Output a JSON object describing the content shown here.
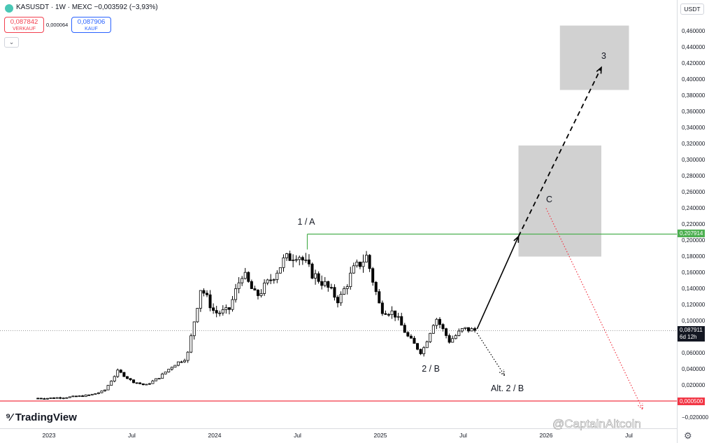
{
  "header": {
    "symbol_line": "KASUSDT · 1W · MEXC",
    "change": "−0,003592 (−3,93%)",
    "sell_price": "0,087842",
    "sell_label": "VERKAUF",
    "spread": "0,000064",
    "buy_price": "0,087906",
    "buy_label": "KAUF",
    "collapse_icon": "chevron-down-icon"
  },
  "axis": {
    "currency": "USDT",
    "settings_icon": "gear-icon"
  },
  "branding": {
    "logo_text": "TradingView",
    "watermark": "@CaptainAltcoin"
  },
  "colors": {
    "up": "#000000",
    "down": "#000000",
    "resistance": "#4caf50",
    "support": "#f23645",
    "box": "#c9c9c9"
  },
  "chart_data": {
    "type": "candlestick",
    "symbol": "KASUSDT",
    "interval": "1W",
    "exchange": "MEXC",
    "ylim": [
      -0.02,
      0.47
    ],
    "y_ticks": [
      "0,460000",
      "0,440000",
      "0,420000",
      "0,400000",
      "0,380000",
      "0,360000",
      "0,340000",
      "0,320000",
      "0,300000",
      "0,280000",
      "0,260000",
      "0,240000",
      "0,220000",
      "0,200000",
      "0,180000",
      "0,160000",
      "0,140000",
      "0,120000",
      "0,100000",
      "0,080000",
      "0,060000",
      "0,040000",
      "0,020000",
      "−0,020000"
    ],
    "y_tick_values": [
      0.46,
      0.44,
      0.42,
      0.4,
      0.38,
      0.36,
      0.34,
      0.32,
      0.3,
      0.28,
      0.26,
      0.24,
      0.22,
      0.2,
      0.18,
      0.16,
      0.14,
      0.12,
      0.1,
      0.08,
      0.06,
      0.04,
      0.02,
      -0.02
    ],
    "x_ticks": [
      "2023",
      "Jul",
      "2024",
      "Jul",
      "2025",
      "Jul",
      "2026",
      "Jul"
    ],
    "x_tick_dates": [
      "2023-01",
      "2023-07",
      "2024-01",
      "2024-07",
      "2025-01",
      "2025-07",
      "2026-01",
      "2026-07"
    ],
    "price_path": [
      [
        "2022-12",
        0.004
      ],
      [
        "2023-01",
        0.004
      ],
      [
        "2023-02",
        0.005
      ],
      [
        "2023-03",
        0.006
      ],
      [
        "2023-04",
        0.008
      ],
      [
        "2023-05",
        0.013
      ],
      [
        "2023-06",
        0.038
      ],
      [
        "2023-07",
        0.025
      ],
      [
        "2023-08",
        0.02
      ],
      [
        "2023-09",
        0.03
      ],
      [
        "2023-10",
        0.045
      ],
      [
        "2023-11",
        0.055
      ],
      [
        "2023-12",
        0.142
      ],
      [
        "2024-01",
        0.11
      ],
      [
        "2024-02",
        0.112
      ],
      [
        "2024-03",
        0.16
      ],
      [
        "2024-04",
        0.13
      ],
      [
        "2024-05",
        0.15
      ],
      [
        "2024-06",
        0.175
      ],
      [
        "2024-07",
        0.185
      ],
      [
        "2024-08",
        0.16
      ],
      [
        "2024-09",
        0.145
      ],
      [
        "2024-10",
        0.125
      ],
      [
        "2024-11",
        0.162
      ],
      [
        "2024-12",
        0.18
      ],
      [
        "2025-01",
        0.115
      ],
      [
        "2025-02",
        0.11
      ],
      [
        "2025-03",
        0.08
      ],
      [
        "2025-04",
        0.06
      ],
      [
        "2025-05",
        0.105
      ],
      [
        "2025-06",
        0.075
      ],
      [
        "2025-07",
        0.09
      ],
      [
        "2025-08",
        0.088
      ]
    ],
    "horizontal_lines": [
      {
        "price": 0.207914,
        "label": "0,207914",
        "color": "#4caf50"
      },
      {
        "price": 0.0005,
        "label": "0,000500",
        "color": "#f23645"
      }
    ],
    "last_price": {
      "price": 0.087911,
      "label": "0,087911",
      "countdown": "6d 12h"
    },
    "target_boxes": [
      {
        "from": "2025-11",
        "to": "2026-05",
        "low": 0.18,
        "high": 0.318
      },
      {
        "from": "2026-02",
        "to": "2026-07",
        "low": 0.387,
        "high": 0.467
      }
    ],
    "paths": [
      {
        "style": "solid",
        "points": [
          [
            "2025-08",
            0.09
          ],
          [
            "2025-11",
            0.205
          ]
        ]
      },
      {
        "style": "dashed",
        "points": [
          [
            "2025-11",
            0.205
          ],
          [
            "2026-05",
            0.415
          ]
        ]
      },
      {
        "style": "dotted",
        "color": "#000000",
        "points": [
          [
            "2025-08",
            0.085
          ],
          [
            "2025-10",
            0.032
          ]
        ]
      },
      {
        "style": "dotted",
        "color": "#f23645",
        "points": [
          [
            "2026-01",
            0.24
          ],
          [
            "2026-08",
            -0.01
          ]
        ]
      }
    ],
    "annotations": [
      {
        "text": "1 / A",
        "date": "2024-07",
        "price": 0.222
      },
      {
        "text": "2 / B",
        "date": "2025-04",
        "price": 0.04
      },
      {
        "text": "Alt. 2 / B",
        "date": "2025-09",
        "price": 0.015
      },
      {
        "text": "C",
        "date": "2026-01",
        "price": 0.25
      },
      {
        "text": "3",
        "date": "2026-05",
        "price": 0.428
      }
    ]
  }
}
